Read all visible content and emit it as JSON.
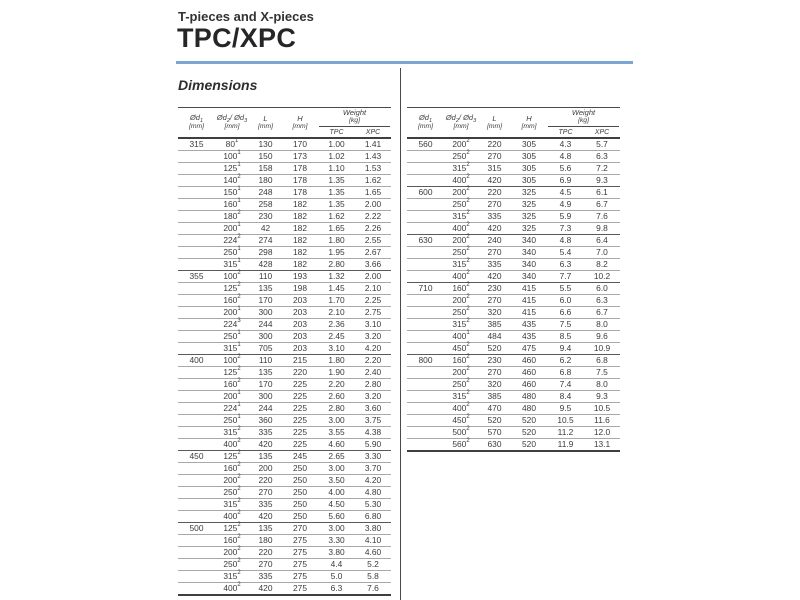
{
  "header": {
    "eyebrow": "T-pieces and X-pieces",
    "title": "TPC/XPC",
    "section": "Dimensions"
  },
  "colors": {
    "accent_blue": "#7ba6d4",
    "text": "#3b3b3b",
    "line_dark": "#3f3f3f",
    "line_light": "#a8a8a8"
  },
  "table_columns": {
    "d1_label": "Ød",
    "d1_sub": "1",
    "d2_label": "Ød",
    "d2_sub": "2",
    "d2_mid": "/ Ød",
    "d2_sub2": "3",
    "l_label": "L",
    "h_label": "H",
    "unit": "[mm]",
    "weight_label": "Weight",
    "weight_unit": "[kg]",
    "tpc": "TPC",
    "xpc": "XPC"
  },
  "row_columns": [
    "d2_d3",
    "footnote",
    "L",
    "H",
    "weight_TPC",
    "weight_XPC"
  ],
  "left_table": {
    "groups": [
      {
        "d1": "315",
        "rows": [
          [
            "80",
            "1",
            "130",
            "170",
            "1.00",
            "1.41"
          ],
          [
            "100",
            "1",
            "150",
            "173",
            "1.02",
            "1.43"
          ],
          [
            "125",
            "1",
            "158",
            "178",
            "1.10",
            "1.53"
          ],
          [
            "140",
            "2",
            "180",
            "178",
            "1.35",
            "1.62"
          ],
          [
            "150",
            "1",
            "248",
            "178",
            "1.35",
            "1.65"
          ],
          [
            "160",
            "1",
            "258",
            "182",
            "1.35",
            "2.00"
          ],
          [
            "180",
            "2",
            "230",
            "182",
            "1.62",
            "2.22"
          ],
          [
            "200",
            "1",
            "42",
            "182",
            "1.65",
            "2.26"
          ],
          [
            "224",
            "2",
            "274",
            "182",
            "1.80",
            "2.55"
          ],
          [
            "250",
            "1",
            "298",
            "182",
            "1.95",
            "2.67"
          ],
          [
            "315",
            "1",
            "428",
            "182",
            "2.80",
            "3.66"
          ]
        ]
      },
      {
        "d1": "355",
        "rows": [
          [
            "100",
            "2",
            "110",
            "193",
            "1.32",
            "2.00"
          ],
          [
            "125",
            "2",
            "135",
            "198",
            "1.45",
            "2.10"
          ],
          [
            "160",
            "2",
            "170",
            "203",
            "1.70",
            "2.25"
          ],
          [
            "200",
            "1",
            "300",
            "203",
            "2.10",
            "2.75"
          ],
          [
            "224",
            "3",
            "244",
            "203",
            "2.36",
            "3.10"
          ],
          [
            "250",
            "1",
            "300",
            "203",
            "2.45",
            "3.20"
          ],
          [
            "315",
            "1",
            "705",
            "203",
            "3.10",
            "4.20"
          ]
        ]
      },
      {
        "d1": "400",
        "rows": [
          [
            "100",
            "2",
            "110",
            "215",
            "1.80",
            "2.20"
          ],
          [
            "125",
            "2",
            "135",
            "220",
            "1.90",
            "2.40"
          ],
          [
            "160",
            "2",
            "170",
            "225",
            "2.20",
            "2.80"
          ],
          [
            "200",
            "1",
            "300",
            "225",
            "2.60",
            "3.20"
          ],
          [
            "224",
            "1",
            "244",
            "225",
            "2.80",
            "3.60"
          ],
          [
            "250",
            "1",
            "360",
            "225",
            "3.00",
            "3.75"
          ],
          [
            "315",
            "2",
            "335",
            "225",
            "3.55",
            "4.38"
          ],
          [
            "400",
            "2",
            "420",
            "225",
            "4.60",
            "5.90"
          ]
        ]
      },
      {
        "d1": "450",
        "rows": [
          [
            "125",
            "2",
            "135",
            "245",
            "2.65",
            "3.30"
          ],
          [
            "160",
            "2",
            "200",
            "250",
            "3.00",
            "3.70"
          ],
          [
            "200",
            "2",
            "220",
            "250",
            "3.50",
            "4.20"
          ],
          [
            "250",
            "2",
            "270",
            "250",
            "4.00",
            "4.80"
          ],
          [
            "315",
            "2",
            "335",
            "250",
            "4.50",
            "5.30"
          ],
          [
            "400",
            "2",
            "420",
            "250",
            "5.60",
            "6.80"
          ]
        ]
      },
      {
        "d1": "500",
        "rows": [
          [
            "125",
            "2",
            "135",
            "270",
            "3.00",
            "3.80"
          ],
          [
            "160",
            "2",
            "180",
            "275",
            "3.30",
            "4.10"
          ],
          [
            "200",
            "2",
            "220",
            "275",
            "3.80",
            "4.60"
          ],
          [
            "250",
            "2",
            "270",
            "275",
            "4.4",
            "5.2"
          ],
          [
            "315",
            "2",
            "335",
            "275",
            "5.0",
            "5.8"
          ],
          [
            "400",
            "2",
            "420",
            "275",
            "6.3",
            "7.6"
          ]
        ]
      }
    ]
  },
  "right_table": {
    "groups": [
      {
        "d1": "560",
        "rows": [
          [
            "200",
            "2",
            "220",
            "305",
            "4.3",
            "5.7"
          ],
          [
            "250",
            "2",
            "270",
            "305",
            "4.8",
            "6.3"
          ],
          [
            "315",
            "2",
            "315",
            "305",
            "5.6",
            "7.2"
          ],
          [
            "400",
            "2",
            "420",
            "305",
            "6.9",
            "9.3"
          ]
        ]
      },
      {
        "d1": "600",
        "rows": [
          [
            "200",
            "2",
            "220",
            "325",
            "4.5",
            "6.1"
          ],
          [
            "250",
            "2",
            "270",
            "325",
            "4.9",
            "6.7"
          ],
          [
            "315",
            "2",
            "335",
            "325",
            "5.9",
            "7.6"
          ],
          [
            "400",
            "2",
            "420",
            "325",
            "7.3",
            "9.8"
          ]
        ]
      },
      {
        "d1": "630",
        "rows": [
          [
            "200",
            "2",
            "240",
            "340",
            "4.8",
            "6.4"
          ],
          [
            "250",
            "2",
            "270",
            "340",
            "5.4",
            "7.0"
          ],
          [
            "315",
            "2",
            "335",
            "340",
            "6.3",
            "8.2"
          ],
          [
            "400",
            "2",
            "420",
            "340",
            "7.7",
            "10.2"
          ]
        ]
      },
      {
        "d1": "710",
        "rows": [
          [
            "160",
            "2",
            "230",
            "415",
            "5.5",
            "6.0"
          ],
          [
            "200",
            "2",
            "270",
            "415",
            "6.0",
            "6.3"
          ],
          [
            "250",
            "2",
            "320",
            "415",
            "6.6",
            "6.7"
          ],
          [
            "315",
            "2",
            "385",
            "435",
            "7.5",
            "8.0"
          ],
          [
            "400",
            "1",
            "484",
            "435",
            "8.5",
            "9.6"
          ],
          [
            "450",
            "2",
            "520",
            "475",
            "9.4",
            "10.9"
          ]
        ]
      },
      {
        "d1": "800",
        "rows": [
          [
            "160",
            "2",
            "230",
            "460",
            "6.2",
            "6.8"
          ],
          [
            "200",
            "2",
            "270",
            "460",
            "6.8",
            "7.5"
          ],
          [
            "250",
            "2",
            "320",
            "460",
            "7.4",
            "8.0"
          ],
          [
            "315",
            "2",
            "385",
            "480",
            "8.4",
            "9.3"
          ],
          [
            "400",
            "2",
            "470",
            "480",
            "9.5",
            "10.5"
          ],
          [
            "450",
            "2",
            "520",
            "520",
            "10.5",
            "11.6"
          ],
          [
            "500",
            "2",
            "570",
            "520",
            "11.2",
            "12.0"
          ],
          [
            "560",
            "2",
            "630",
            "520",
            "11.9",
            "13.1"
          ]
        ]
      }
    ]
  }
}
